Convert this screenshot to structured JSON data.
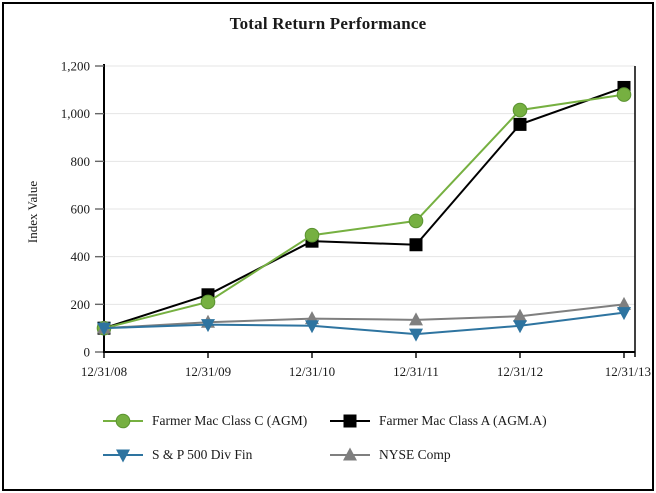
{
  "chart_data": {
    "type": "line",
    "title": "Total Return Performance",
    "ylabel": "Index Value",
    "xlabel": "",
    "categories": [
      "12/31/08",
      "12/31/09",
      "12/31/10",
      "12/31/11",
      "12/31/12",
      "12/31/13"
    ],
    "ylim": [
      0,
      1200
    ],
    "ytick_interval": 200,
    "ytick_labels": [
      "0",
      "200",
      "400",
      "600",
      "800",
      "1,000",
      "1,200"
    ],
    "grid": "horizontal-light-gray",
    "legend_position": "bottom-two-columns",
    "series": [
      {
        "name": "Farmer Mac Class C (AGM)",
        "marker": "circle",
        "color": "#76B041",
        "values": [
          100,
          210,
          490,
          550,
          1015,
          1080
        ]
      },
      {
        "name": "Farmer Mac Class A (AGM.A)",
        "marker": "square",
        "color": "#000000",
        "values": [
          100,
          240,
          465,
          450,
          955,
          1110
        ]
      },
      {
        "name": "S & P 500 Div Fin",
        "marker": "triangle-down",
        "color": "#2E74A0",
        "values": [
          100,
          115,
          110,
          75,
          110,
          165
        ]
      },
      {
        "name": "NYSE Comp",
        "marker": "triangle-up",
        "color": "#7F7F7F",
        "values": [
          100,
          125,
          140,
          135,
          150,
          200
        ]
      }
    ]
  },
  "colors": {
    "grid": "#E4E4E4",
    "axis": "#000000",
    "tick": "#666666",
    "text": "#1a1a1a",
    "background": "#ffffff"
  }
}
